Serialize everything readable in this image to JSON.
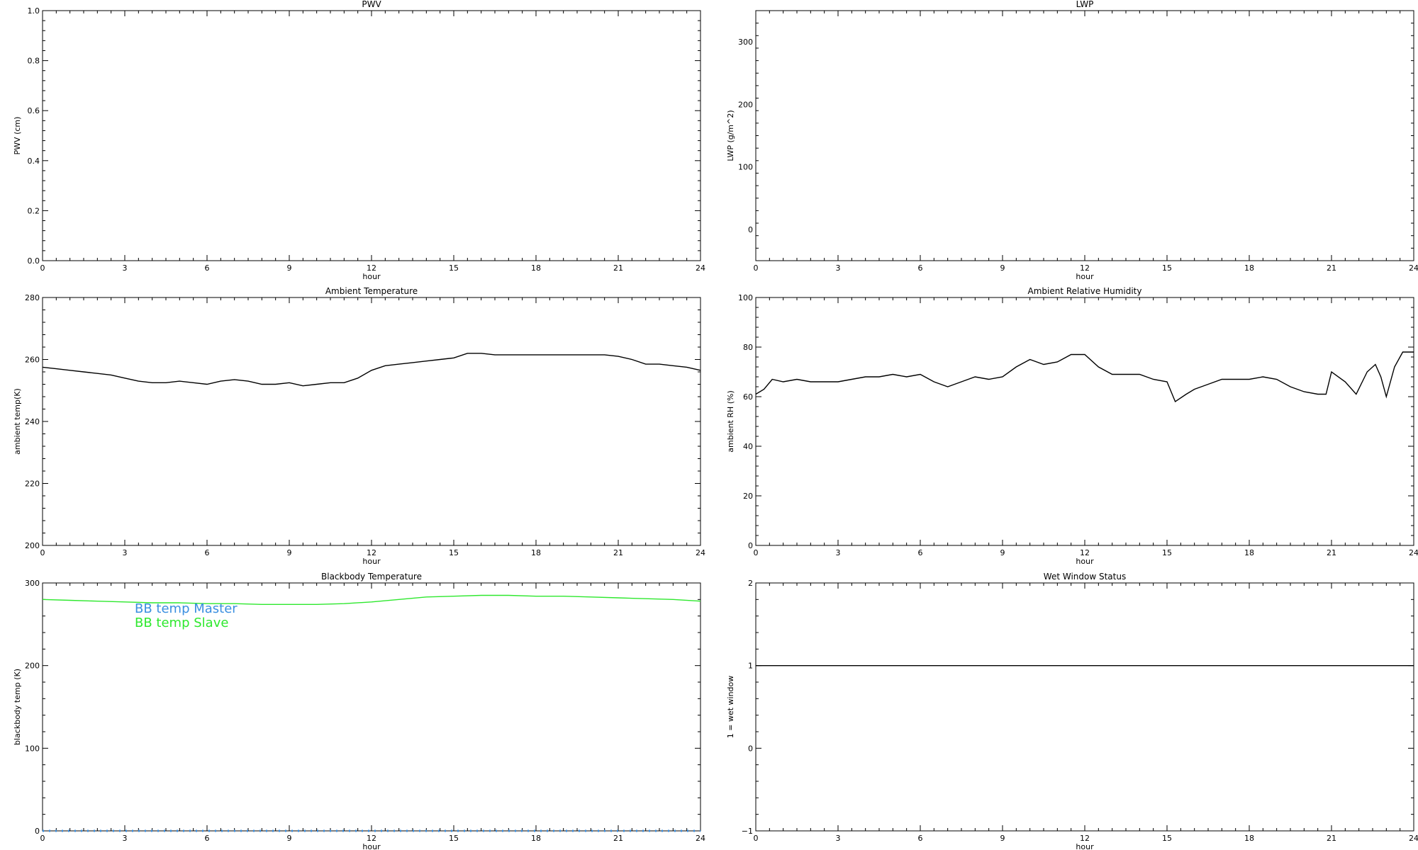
{
  "chart_data": [
    {
      "id": "pwv",
      "type": "line",
      "title": "PWV",
      "xlabel": "hour",
      "ylabel": "PWV (cm)",
      "xlim": [
        0,
        24
      ],
      "ylim": [
        0.0,
        1.0
      ],
      "x_major_ticks": [
        0,
        3,
        6,
        9,
        12,
        15,
        18,
        21,
        24
      ],
      "y_major_ticks": [
        0.0,
        0.2,
        0.4,
        0.6,
        0.8,
        1.0
      ],
      "y_tick_labels": [
        "0.0",
        "0.2",
        "0.4",
        "0.6",
        "0.8",
        "1.0"
      ],
      "series": []
    },
    {
      "id": "lwp",
      "type": "line",
      "title": "LWP",
      "xlabel": "hour",
      "ylabel": "LWP (g/m^2)",
      "xlim": [
        0,
        24
      ],
      "ylim": [
        -50,
        350
      ],
      "x_major_ticks": [
        0,
        3,
        6,
        9,
        12,
        15,
        18,
        21,
        24
      ],
      "y_major_ticks": [
        0,
        100,
        200,
        300
      ],
      "y_tick_labels": [
        "0",
        "100",
        "200",
        "300"
      ],
      "series": []
    },
    {
      "id": "ambient-temp",
      "type": "line",
      "title": "Ambient Temperature",
      "xlabel": "hour",
      "ylabel": "ambient temp(K)",
      "xlim": [
        0,
        24
      ],
      "ylim": [
        200,
        280
      ],
      "x_major_ticks": [
        0,
        3,
        6,
        9,
        12,
        15,
        18,
        21,
        24
      ],
      "y_major_ticks": [
        200,
        220,
        240,
        260,
        280
      ],
      "y_tick_labels": [
        "200",
        "220",
        "240",
        "260",
        "280"
      ],
      "series": [
        {
          "color": "#000000",
          "x": [
            0,
            0.5,
            1,
            1.5,
            2,
            2.5,
            3,
            3.5,
            4,
            4.5,
            5,
            5.5,
            6,
            6.5,
            7,
            7.5,
            8,
            8.5,
            9,
            9.5,
            10,
            10.5,
            11,
            11.5,
            12,
            12.5,
            13,
            13.5,
            14,
            14.5,
            15,
            15.5,
            16,
            16.5,
            17,
            17.5,
            18,
            18.5,
            19,
            19.5,
            20,
            20.5,
            21,
            21.5,
            22,
            22.5,
            23,
            23.5,
            24
          ],
          "y": [
            257.5,
            257,
            256.5,
            256,
            255.5,
            255,
            254,
            253,
            252.5,
            252.5,
            253,
            252.5,
            252,
            253,
            253.5,
            253,
            252,
            252,
            252.5,
            251.5,
            252,
            252.5,
            252.5,
            254,
            256.5,
            258,
            258.5,
            259,
            259.5,
            260,
            260.5,
            262,
            262,
            261.5,
            261.5,
            261.5,
            261.5,
            261.5,
            261.5,
            261.5,
            261.5,
            261.5,
            261,
            260,
            258.5,
            258.5,
            258,
            257.5,
            256.5
          ]
        }
      ]
    },
    {
      "id": "ambient-rh",
      "type": "line",
      "title": "Ambient Relative Humidity",
      "xlabel": "hour",
      "ylabel": "ambient RH (%)",
      "xlim": [
        0,
        24
      ],
      "ylim": [
        0,
        100
      ],
      "x_major_ticks": [
        0,
        3,
        6,
        9,
        12,
        15,
        18,
        21,
        24
      ],
      "y_major_ticks": [
        0,
        20,
        40,
        60,
        80,
        100
      ],
      "y_tick_labels": [
        "0",
        "20",
        "40",
        "60",
        "80",
        "100"
      ],
      "series": [
        {
          "color": "#000000",
          "x": [
            0,
            0.3,
            0.6,
            1,
            1.5,
            2,
            2.5,
            3,
            3.5,
            4,
            4.5,
            5,
            5.5,
            6,
            6.5,
            7,
            7.5,
            8,
            8.5,
            9,
            9.5,
            10,
            10.5,
            11,
            11.5,
            12,
            12.5,
            13,
            13.5,
            14,
            14.5,
            15,
            15.3,
            15.7,
            16,
            16.5,
            17,
            17.5,
            18,
            18.5,
            19,
            19.5,
            20,
            20.5,
            20.8,
            21,
            21.5,
            21.9,
            22.3,
            22.6,
            22.8,
            23,
            23.3,
            23.6,
            24
          ],
          "y": [
            61,
            63,
            67,
            66,
            67,
            66,
            66,
            66,
            67,
            68,
            68,
            69,
            68,
            69,
            66,
            64,
            66,
            68,
            67,
            68,
            72,
            75,
            73,
            74,
            77,
            77,
            72,
            69,
            69,
            69,
            67,
            66,
            58,
            61,
            63,
            65,
            67,
            67,
            67,
            68,
            67,
            64,
            62,
            61,
            61,
            70,
            66,
            61,
            70,
            73,
            68,
            60,
            72,
            78,
            78
          ]
        }
      ]
    },
    {
      "id": "bb-temp",
      "type": "line",
      "title": "Blackbody Temperature",
      "xlabel": "hour",
      "ylabel": "blackbody temp (K)",
      "xlim": [
        0,
        24
      ],
      "ylim": [
        0,
        300
      ],
      "x_major_ticks": [
        0,
        3,
        6,
        9,
        12,
        15,
        18,
        21,
        24
      ],
      "y_major_ticks": [
        0,
        100,
        200,
        300
      ],
      "y_tick_labels": [
        "0",
        "100",
        "200",
        "300"
      ],
      "legend": [
        "BB temp Master",
        "BB temp Slave"
      ],
      "series": [
        {
          "name": "BB temp Master",
          "color": "#3a8fe0",
          "x": [
            0,
            24
          ],
          "y": [
            0,
            0
          ],
          "style": "dotted"
        },
        {
          "name": "BB temp Slave",
          "color": "#2ee82e",
          "x": [
            0,
            1,
            2,
            3,
            4,
            5,
            6,
            7,
            8,
            9,
            10,
            11,
            12,
            13,
            14,
            15,
            16,
            17,
            18,
            19,
            20,
            21,
            22,
            23,
            24
          ],
          "y": [
            280,
            279,
            278,
            277,
            276,
            276,
            275,
            275,
            274,
            274,
            274,
            275,
            277,
            280,
            283,
            284,
            285,
            285,
            284,
            284,
            283,
            282,
            281,
            280,
            278
          ]
        }
      ]
    },
    {
      "id": "wet-window",
      "type": "line",
      "title": "Wet Window Status",
      "xlabel": "hour",
      "ylabel": "1 = wet window",
      "xlim": [
        0,
        24
      ],
      "ylim": [
        -1,
        2
      ],
      "x_major_ticks": [
        0,
        3,
        6,
        9,
        12,
        15,
        18,
        21,
        24
      ],
      "y_major_ticks": [
        -1,
        0,
        1,
        2
      ],
      "y_tick_labels": [
        "−1",
        "0",
        "1",
        "2"
      ],
      "series": [
        {
          "color": "#000000",
          "x": [
            0,
            24
          ],
          "y": [
            1,
            1
          ]
        }
      ]
    }
  ]
}
